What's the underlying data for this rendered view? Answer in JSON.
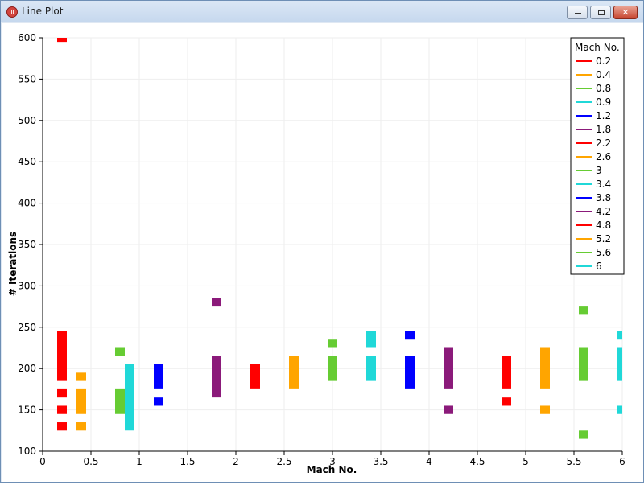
{
  "window": {
    "title": "Line Plot"
  },
  "chart_data": {
    "type": "line",
    "xlabel": "Mach No.",
    "ylabel": "# Iterations",
    "xlim": [
      0,
      6
    ],
    "ylim": [
      100,
      600
    ],
    "xticks": [
      {
        "value": 0,
        "label": "0"
      },
      {
        "value": 0.5,
        "label": "0.5"
      },
      {
        "value": 1,
        "label": "1"
      },
      {
        "value": 1.5,
        "label": "1.5"
      },
      {
        "value": 2,
        "label": "2"
      },
      {
        "value": 2.5,
        "label": "2.5"
      },
      {
        "value": 3,
        "label": "3"
      },
      {
        "value": 3.5,
        "label": "3.5"
      },
      {
        "value": 4,
        "label": "4"
      },
      {
        "value": 4.5,
        "label": "4.5"
      },
      {
        "value": 5,
        "label": "5"
      },
      {
        "value": 5.5,
        "label": "5.5"
      },
      {
        "value": 6,
        "label": "6"
      }
    ],
    "yticks": [
      {
        "value": 100,
        "label": "100"
      },
      {
        "value": 150,
        "label": "150"
      },
      {
        "value": 200,
        "label": "200"
      },
      {
        "value": 250,
        "label": "250"
      },
      {
        "value": 300,
        "label": "300"
      },
      {
        "value": 350,
        "label": "350"
      },
      {
        "value": 400,
        "label": "400"
      },
      {
        "value": 450,
        "label": "450"
      },
      {
        "value": 500,
        "label": "500"
      },
      {
        "value": 550,
        "label": "550"
      },
      {
        "value": 600,
        "label": "600"
      }
    ],
    "grid": true,
    "legend": {
      "title": "Mach No.",
      "placement": "top-right"
    },
    "series": [
      {
        "name": "0.2",
        "color": "#ff0000",
        "x": 0.2,
        "segments": [
          [
            185,
            245
          ],
          [
            165,
            175
          ],
          [
            145,
            155
          ],
          [
            125,
            135
          ],
          [
            595,
            600
          ]
        ]
      },
      {
        "name": "0.4",
        "color": "#ffa500",
        "x": 0.4,
        "segments": [
          [
            185,
            195
          ],
          [
            145,
            175
          ],
          [
            125,
            135
          ]
        ]
      },
      {
        "name": "0.8",
        "color": "#66cc33",
        "x": 0.8,
        "segments": [
          [
            215,
            225
          ],
          [
            145,
            175
          ]
        ]
      },
      {
        "name": "0.9",
        "color": "#20d8d8",
        "x": 0.9,
        "segments": [
          [
            125,
            205
          ]
        ]
      },
      {
        "name": "1.2",
        "color": "#0000ff",
        "x": 1.2,
        "segments": [
          [
            175,
            205
          ],
          [
            155,
            165
          ]
        ]
      },
      {
        "name": "1.8",
        "color": "#8b1a7a",
        "x": 1.8,
        "segments": [
          [
            275,
            285
          ],
          [
            165,
            215
          ]
        ]
      },
      {
        "name": "2.2",
        "color": "#ff0000",
        "x": 2.2,
        "segments": [
          [
            175,
            205
          ]
        ]
      },
      {
        "name": "2.6",
        "color": "#ffa500",
        "x": 2.6,
        "segments": [
          [
            175,
            215
          ]
        ]
      },
      {
        "name": "3",
        "color": "#66cc33",
        "x": 3.0,
        "segments": [
          [
            225,
            235
          ],
          [
            185,
            215
          ]
        ]
      },
      {
        "name": "3.4",
        "color": "#20d8d8",
        "x": 3.4,
        "segments": [
          [
            225,
            245
          ],
          [
            185,
            215
          ]
        ]
      },
      {
        "name": "3.8",
        "color": "#0000ff",
        "x": 3.8,
        "segments": [
          [
            235,
            245
          ],
          [
            175,
            215
          ]
        ]
      },
      {
        "name": "4.2",
        "color": "#8b1a7a",
        "x": 4.2,
        "segments": [
          [
            175,
            225
          ],
          [
            145,
            155
          ]
        ]
      },
      {
        "name": "4.8",
        "color": "#ff0000",
        "x": 4.8,
        "segments": [
          [
            175,
            215
          ],
          [
            155,
            165
          ]
        ]
      },
      {
        "name": "5.2",
        "color": "#ffa500",
        "x": 5.2,
        "segments": [
          [
            175,
            225
          ],
          [
            145,
            155
          ]
        ]
      },
      {
        "name": "5.6",
        "color": "#66cc33",
        "x": 5.6,
        "segments": [
          [
            265,
            275
          ],
          [
            185,
            225
          ],
          [
            115,
            125
          ]
        ]
      },
      {
        "name": "6",
        "color": "#20d8d8",
        "x": 6.0,
        "segments": [
          [
            235,
            245
          ],
          [
            185,
            225
          ],
          [
            145,
            155
          ]
        ]
      }
    ]
  }
}
